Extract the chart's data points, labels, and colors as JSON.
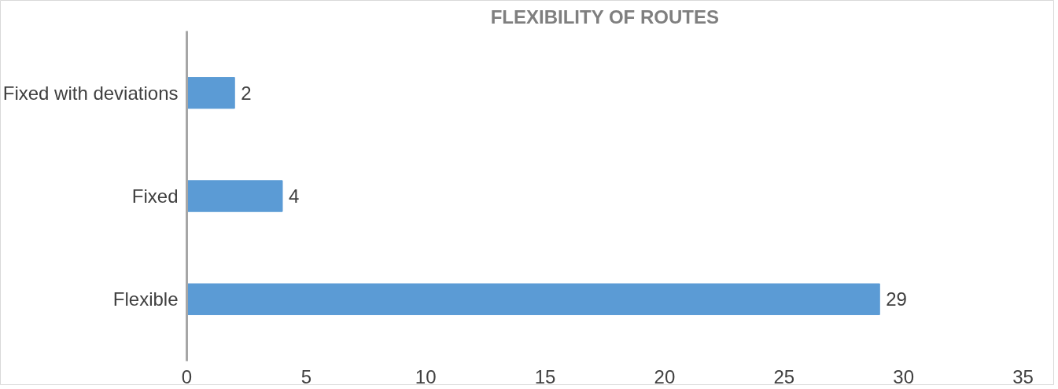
{
  "chart_data": {
    "type": "bar",
    "orientation": "horizontal",
    "title": "FLEXIBILITY OF ROUTES",
    "categories": [
      "Fixed with deviations",
      "Fixed",
      "Flexible"
    ],
    "values": [
      2,
      4,
      29
    ],
    "color": "#5b9bd5",
    "xlim": [
      0,
      35
    ],
    "xticks": [
      0,
      5,
      10,
      15,
      20,
      25,
      30,
      35
    ],
    "grid": false,
    "data_labels": true
  }
}
